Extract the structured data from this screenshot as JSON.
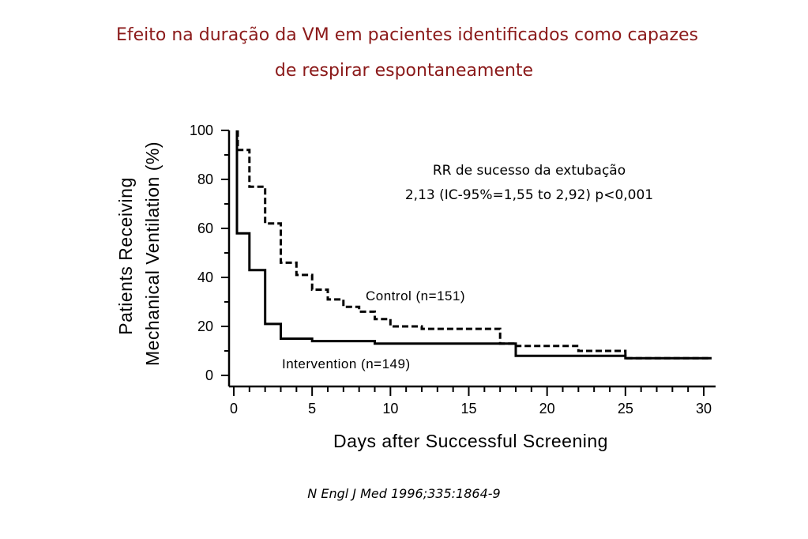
{
  "title_line1": "Efeito na duração da VM em pacientes identificados como capazes",
  "title_line2": "de respirar espontaneamente",
  "annotation_line1": "RR de sucesso da extubação",
  "annotation_line2": "2,13  (IC-95%=1,55 to 2,92) p<0,001",
  "citation": "N Engl J Med 1996;335:1864-9",
  "colors": {
    "title": "#8b1a1a",
    "lines": "#000000"
  },
  "chart_data": {
    "type": "line",
    "step": true,
    "xlabel": "Days after Successful Screening",
    "ylabel_line1": "Patients Receiving",
    "ylabel_line2": "Mechanical Ventilation (%)",
    "xlim": [
      0,
      30
    ],
    "ylim": [
      0,
      100
    ],
    "x_ticks": [
      0,
      5,
      10,
      15,
      20,
      25,
      30
    ],
    "y_ticks": [
      0,
      20,
      40,
      60,
      80,
      100
    ],
    "grid": false,
    "series": [
      {
        "name": "Control (n=151)",
        "style": "dashed",
        "points": [
          [
            0.25,
            100
          ],
          [
            0.25,
            92
          ],
          [
            1,
            92
          ],
          [
            1,
            77
          ],
          [
            2,
            77
          ],
          [
            2,
            62
          ],
          [
            3,
            62
          ],
          [
            3,
            46
          ],
          [
            4,
            46
          ],
          [
            4,
            41
          ],
          [
            5,
            41
          ],
          [
            5,
            35
          ],
          [
            6,
            35
          ],
          [
            6,
            31
          ],
          [
            7,
            31
          ],
          [
            7,
            28
          ],
          [
            8,
            28
          ],
          [
            8,
            26
          ],
          [
            9,
            26
          ],
          [
            9,
            23
          ],
          [
            10,
            23
          ],
          [
            10,
            20
          ],
          [
            12,
            20
          ],
          [
            12,
            19
          ],
          [
            17,
            19
          ],
          [
            17,
            13
          ],
          [
            18,
            13
          ],
          [
            18,
            12
          ],
          [
            22,
            12
          ],
          [
            22,
            10
          ],
          [
            25,
            10
          ],
          [
            25,
            7
          ],
          [
            30.5,
            7
          ]
        ]
      },
      {
        "name": "Intervention (n=149)",
        "style": "solid",
        "points": [
          [
            0.2,
            100
          ],
          [
            0.2,
            58
          ],
          [
            1,
            58
          ],
          [
            1,
            43
          ],
          [
            2,
            43
          ],
          [
            2,
            21
          ],
          [
            3,
            21
          ],
          [
            3,
            15
          ],
          [
            5,
            15
          ],
          [
            5,
            14
          ],
          [
            9,
            14
          ],
          [
            9,
            13
          ],
          [
            18,
            13
          ],
          [
            18,
            8
          ],
          [
            25,
            8
          ],
          [
            25,
            7
          ],
          [
            30.5,
            7
          ]
        ]
      }
    ]
  }
}
